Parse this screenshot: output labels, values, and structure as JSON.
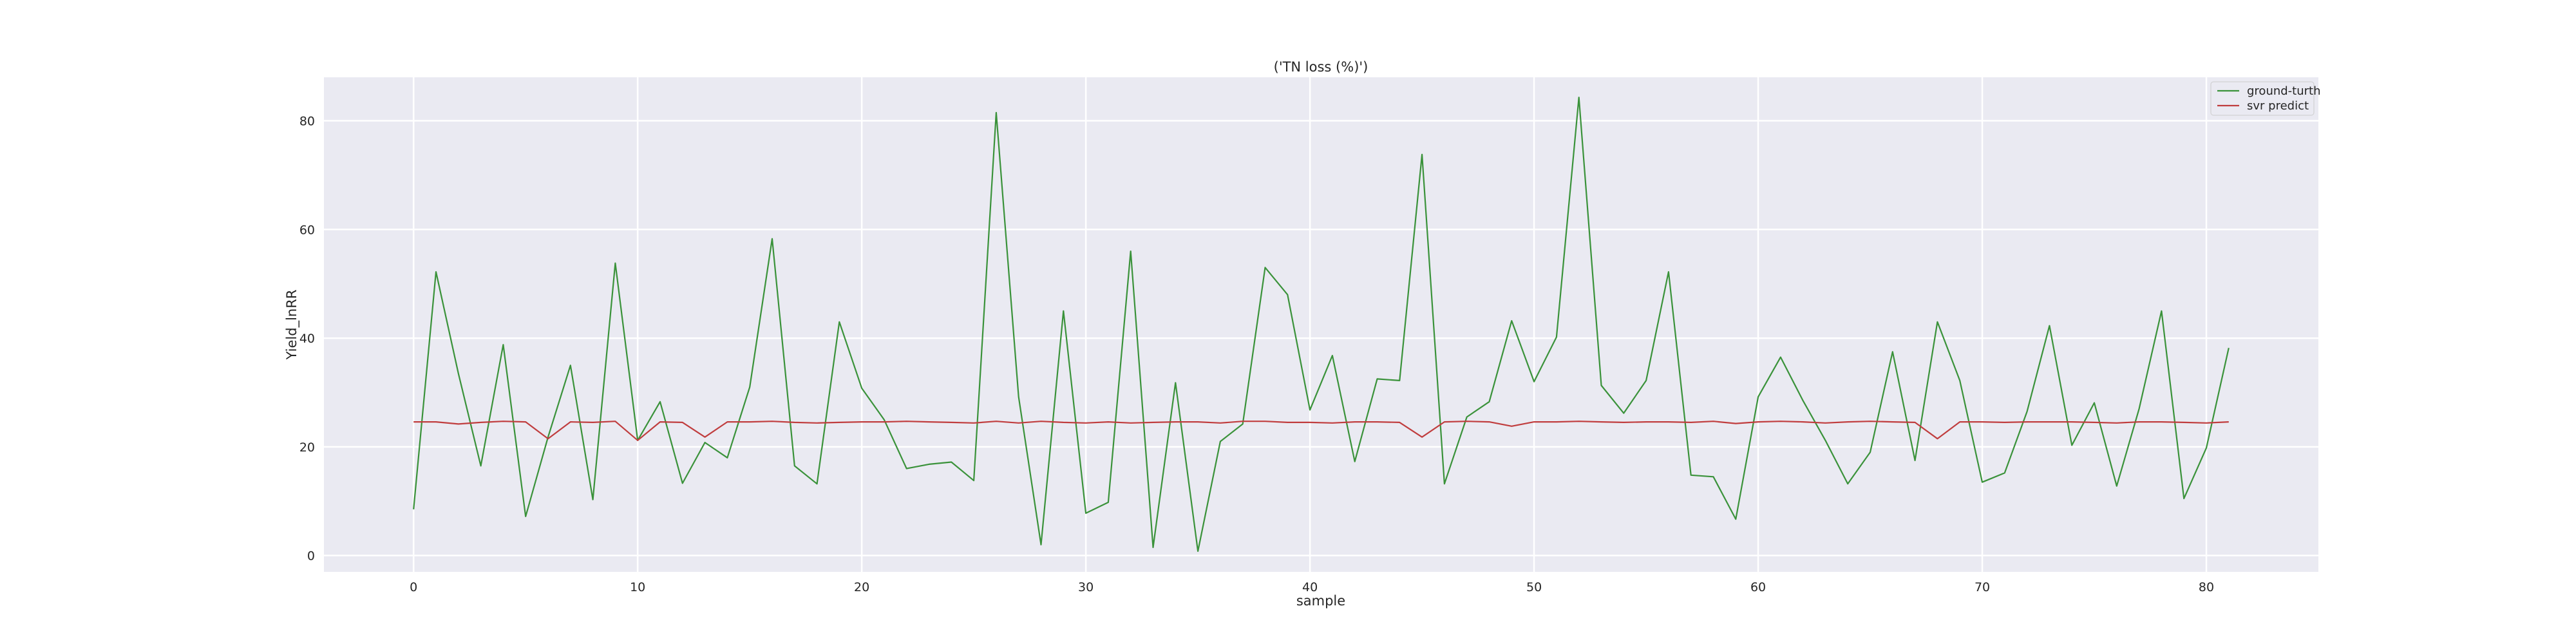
{
  "chart_data": {
    "type": "line",
    "title": "('TN loss (%)')",
    "xlabel": "sample",
    "ylabel": "Yield_lnRR",
    "xlim": [
      -4,
      85
    ],
    "ylim": [
      -3,
      88
    ],
    "xticks": [
      0,
      10,
      20,
      30,
      40,
      50,
      60,
      70,
      80
    ],
    "yticks": [
      0,
      20,
      40,
      60,
      80
    ],
    "grid": true,
    "legend_position": "top-right",
    "x": [
      0,
      1,
      2,
      3,
      4,
      5,
      6,
      7,
      8,
      9,
      10,
      11,
      12,
      13,
      14,
      15,
      16,
      17,
      18,
      19,
      20,
      21,
      22,
      23,
      24,
      25,
      26,
      27,
      28,
      29,
      30,
      31,
      32,
      33,
      34,
      35,
      36,
      37,
      38,
      39,
      40,
      41,
      42,
      43,
      44,
      45,
      46,
      47,
      48,
      49,
      50,
      51,
      52,
      53,
      54,
      55,
      56,
      57,
      58,
      59,
      60,
      61,
      62,
      63,
      64,
      65,
      66,
      67,
      68,
      69,
      70,
      71,
      72,
      73,
      74,
      75,
      76,
      77,
      78,
      79,
      80,
      81
    ],
    "series": [
      {
        "name": "ground-turth",
        "color": "#3a923a",
        "values": [
          8.5,
          52.2,
          33.5,
          16.5,
          38.8,
          7.2,
          21.8,
          35,
          10.3,
          53.8,
          21.2,
          28.3,
          13.3,
          20.8,
          18,
          31,
          58.3,
          16.5,
          13.2,
          43,
          30.8,
          25,
          16,
          16.8,
          17.2,
          13.8,
          81.5,
          29.2,
          2,
          45,
          7.8,
          9.8,
          56,
          1.5,
          31.8,
          0.8,
          21,
          24.2,
          53,
          48,
          26.8,
          36.8,
          17.3,
          32.5,
          32.2,
          73.8,
          13.2,
          25.5,
          28.3,
          43.2,
          32,
          40.2,
          84.3,
          31.3,
          26.2,
          32.2,
          52.2,
          14.8,
          14.5,
          6.7,
          29.2,
          36.5,
          28.5,
          21.2,
          13.2,
          19,
          37.5,
          17.5,
          43,
          32.2,
          13.5,
          15.2,
          26.5,
          42.3,
          20.3,
          28.1,
          12.8,
          27,
          45,
          10.5,
          19.8,
          38.2
        ]
      },
      {
        "name": "svr predict",
        "color": "#c03d3e",
        "values": [
          24.6,
          24.6,
          24.2,
          24.5,
          24.7,
          24.6,
          21.5,
          24.6,
          24.5,
          24.7,
          21.2,
          24.6,
          24.5,
          21.8,
          24.6,
          24.6,
          24.7,
          24.5,
          24.4,
          24.5,
          24.6,
          24.6,
          24.7,
          24.6,
          24.5,
          24.4,
          24.7,
          24.4,
          24.7,
          24.5,
          24.4,
          24.6,
          24.4,
          24.5,
          24.6,
          24.6,
          24.4,
          24.7,
          24.7,
          24.5,
          24.5,
          24.4,
          24.6,
          24.6,
          24.5,
          21.8,
          24.6,
          24.7,
          24.6,
          23.8,
          24.6,
          24.6,
          24.7,
          24.6,
          24.5,
          24.6,
          24.6,
          24.5,
          24.7,
          24.3,
          24.6,
          24.7,
          24.6,
          24.4,
          24.6,
          24.7,
          24.6,
          24.5,
          21.5,
          24.6,
          24.6,
          24.5,
          24.6,
          24.6,
          24.6,
          24.5,
          24.4,
          24.6,
          24.6,
          24.5,
          24.4,
          24.6
        ]
      }
    ]
  }
}
